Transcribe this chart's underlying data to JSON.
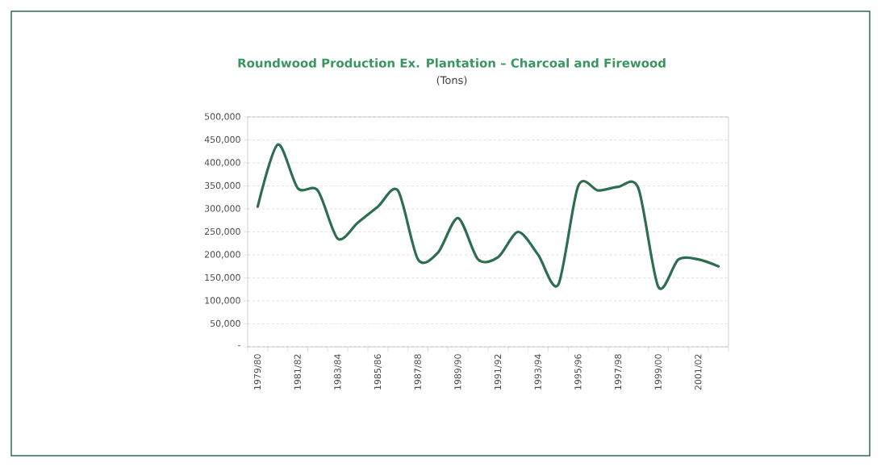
{
  "chart_data": {
    "type": "line",
    "title": "Roundwood Production Ex. Plantation – Charcoal and Firewood",
    "subtitle": "(Tons)",
    "categories": [
      "1979/80",
      null,
      "1981/82",
      null,
      "1983/84",
      null,
      "1985/86",
      null,
      "1987/88",
      null,
      "1989/90",
      null,
      "1991/92",
      null,
      "1993/94",
      null,
      "1995/96",
      null,
      "1997/98",
      null,
      "1999/00",
      null,
      "2001/02",
      null
    ],
    "series": [
      {
        "color": "#2e6e50",
        "values": [
          305000,
          440000,
          345000,
          340000,
          235000,
          270000,
          305000,
          340000,
          190000,
          205000,
          280000,
          190000,
          195000,
          250000,
          200000,
          135000,
          350000,
          340000,
          348000,
          345000,
          130000,
          190000,
          190000,
          175000
        ]
      }
    ],
    "ylim": [
      0,
      500000
    ],
    "yticks": [
      {
        "value": 0,
        "label": "-"
      },
      {
        "value": 50000,
        "label": "50,000"
      },
      {
        "value": 100000,
        "label": "100,000"
      },
      {
        "value": 150000,
        "label": "150,000"
      },
      {
        "value": 200000,
        "label": "200,000"
      },
      {
        "value": 250000,
        "label": "250,000"
      },
      {
        "value": 300000,
        "label": "300,000"
      },
      {
        "value": 350000,
        "label": "350,000"
      },
      {
        "value": 400000,
        "label": "400,000"
      },
      {
        "value": 450000,
        "label": "450,000"
      },
      {
        "value": 500000,
        "label": "500,000"
      }
    ],
    "grid": "y",
    "marker": "none",
    "line_style": "solid"
  }
}
